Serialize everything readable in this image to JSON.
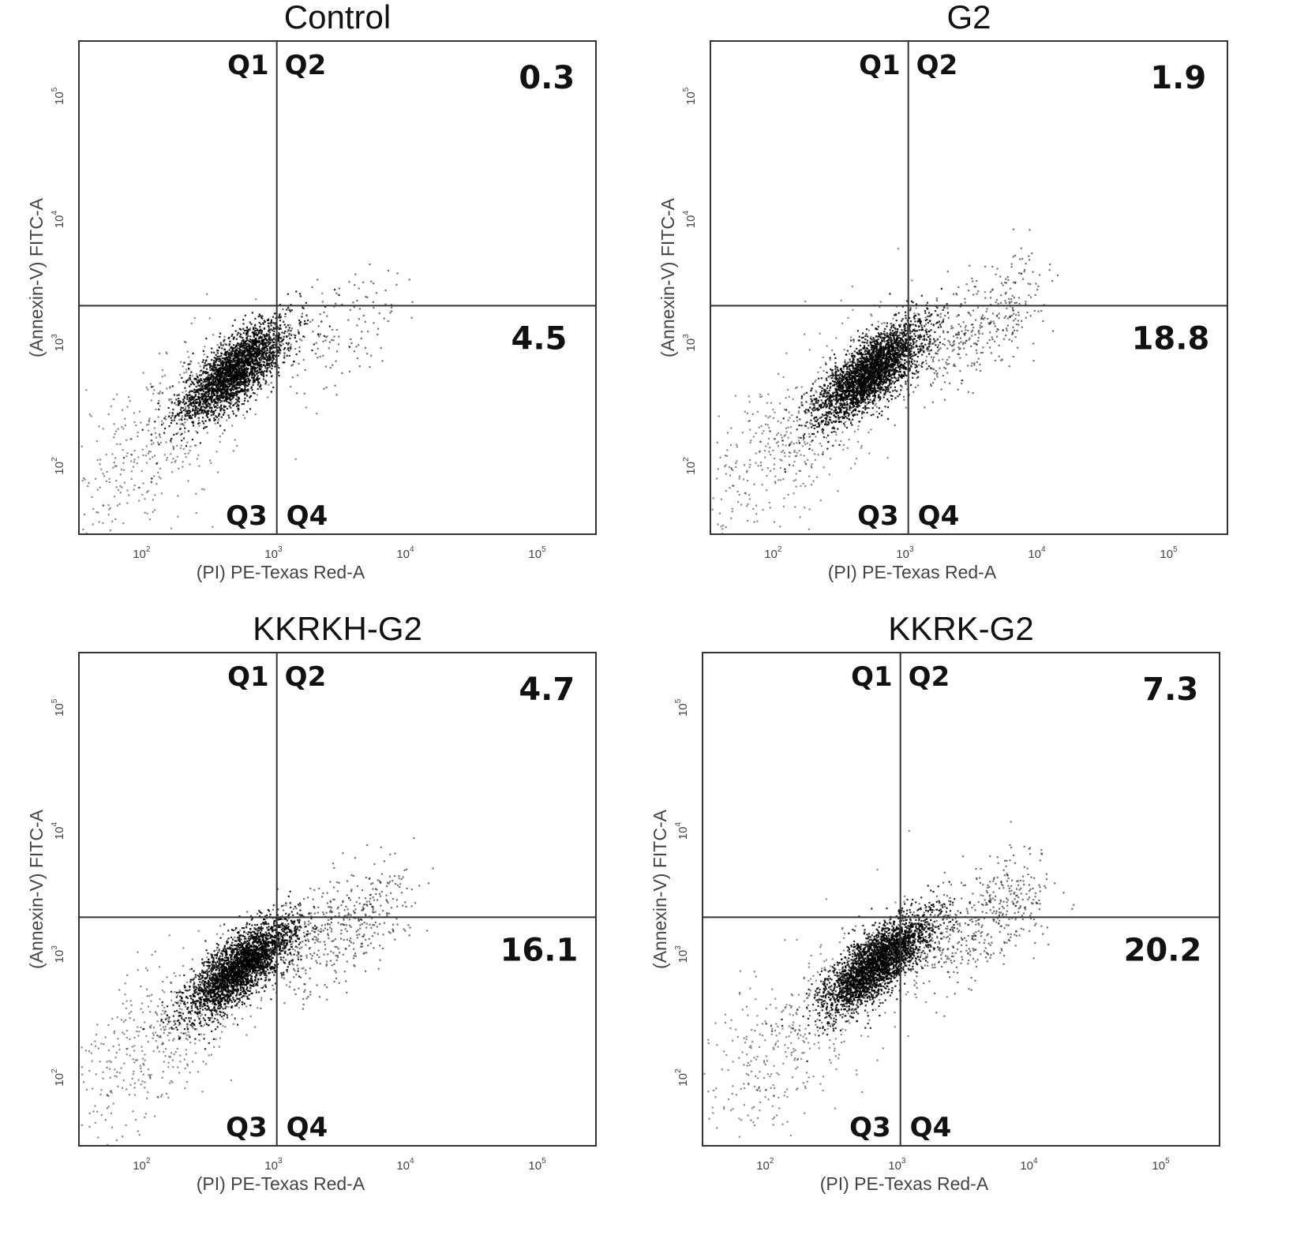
{
  "chart_data": [
    {
      "type": "scatter",
      "title": "Control",
      "xlabel": "(PI) PE-Texas Red-A",
      "ylabel": "(Annexin-V) FITC-A",
      "x_scale": "log",
      "y_scale": "log",
      "xlim": [
        30,
        250000
      ],
      "ylim": [
        28,
        280000
      ],
      "x_ticks": [
        {
          "base": "10",
          "exp": "2",
          "value": 100
        },
        {
          "base": "10",
          "exp": "3",
          "value": 1000
        },
        {
          "base": "10",
          "exp": "4",
          "value": 10000
        },
        {
          "base": "10",
          "exp": "5",
          "value": 100000
        }
      ],
      "y_ticks": [
        {
          "base": "10",
          "exp": "2",
          "value": 100
        },
        {
          "base": "10",
          "exp": "3",
          "value": 1000
        },
        {
          "base": "10",
          "exp": "4",
          "value": 10000
        },
        {
          "base": "10",
          "exp": "5",
          "value": 100000
        }
      ],
      "gate": {
        "x": 950,
        "y": 2000
      },
      "quadrant_labels": {
        "q1": "Q1",
        "q2": "Q2",
        "q3": "Q3",
        "q4": "Q4"
      },
      "percentages": {
        "upper_right": "0.3",
        "lower_right": "4.5"
      },
      "cluster": {
        "center_x": 450,
        "center_y": 600,
        "points": 2600,
        "background_points": 450,
        "tail_points": 140
      }
    },
    {
      "type": "scatter",
      "title": "G2",
      "xlabel": "(PI) PE-Texas Red-A",
      "ylabel": "(Annexin-V) FITC-A",
      "x_scale": "log",
      "y_scale": "log",
      "xlim": [
        30,
        250000
      ],
      "ylim": [
        28,
        280000
      ],
      "x_ticks": [
        {
          "base": "10",
          "exp": "2",
          "value": 100
        },
        {
          "base": "10",
          "exp": "3",
          "value": 1000
        },
        {
          "base": "10",
          "exp": "4",
          "value": 10000
        },
        {
          "base": "10",
          "exp": "5",
          "value": 100000
        }
      ],
      "y_ticks": [
        {
          "base": "10",
          "exp": "2",
          "value": 100
        },
        {
          "base": "10",
          "exp": "3",
          "value": 1000
        },
        {
          "base": "10",
          "exp": "4",
          "value": 10000
        },
        {
          "base": "10",
          "exp": "5",
          "value": 100000
        }
      ],
      "gate": {
        "x": 950,
        "y": 2000
      },
      "quadrant_labels": {
        "q1": "Q1",
        "q2": "Q2",
        "q3": "Q3",
        "q4": "Q4"
      },
      "percentages": {
        "upper_right": "1.9",
        "lower_right": "18.8"
      },
      "cluster": {
        "center_x": 480,
        "center_y": 580,
        "points": 2900,
        "background_points": 500,
        "tail_points": 420
      }
    },
    {
      "type": "scatter",
      "title": "KKRKH-G2",
      "xlabel": "(PI) PE-Texas Red-A",
      "ylabel": "(Annexin-V) FITC-A",
      "x_scale": "log",
      "y_scale": "log",
      "xlim": [
        30,
        250000
      ],
      "ylim": [
        28,
        280000
      ],
      "x_ticks": [
        {
          "base": "10",
          "exp": "2",
          "value": 100
        },
        {
          "base": "10",
          "exp": "3",
          "value": 1000
        },
        {
          "base": "10",
          "exp": "4",
          "value": 10000
        },
        {
          "base": "10",
          "exp": "5",
          "value": 100000
        }
      ],
      "y_ticks": [
        {
          "base": "10",
          "exp": "2",
          "value": 100
        },
        {
          "base": "10",
          "exp": "3",
          "value": 1000
        },
        {
          "base": "10",
          "exp": "4",
          "value": 10000
        },
        {
          "base": "10",
          "exp": "5",
          "value": 100000
        }
      ],
      "gate": {
        "x": 950,
        "y": 2000
      },
      "quadrant_labels": {
        "q1": "Q1",
        "q2": "Q2",
        "q3": "Q3",
        "q4": "Q4"
      },
      "percentages": {
        "upper_right": "4.7",
        "lower_right": "16.1"
      },
      "cluster": {
        "center_x": 500,
        "center_y": 800,
        "points": 2800,
        "background_points": 520,
        "tail_points": 480
      }
    },
    {
      "type": "scatter",
      "title": "KKRK-G2",
      "xlabel": "(PI) PE-Texas Red-A",
      "ylabel": "(Annexin-V) FITC-A",
      "x_scale": "log",
      "y_scale": "log",
      "xlim": [
        30,
        250000
      ],
      "ylim": [
        28,
        280000
      ],
      "x_ticks": [
        {
          "base": "10",
          "exp": "2",
          "value": 100
        },
        {
          "base": "10",
          "exp": "3",
          "value": 1000
        },
        {
          "base": "10",
          "exp": "4",
          "value": 10000
        },
        {
          "base": "10",
          "exp": "5",
          "value": 100000
        }
      ],
      "y_ticks": [
        {
          "base": "10",
          "exp": "2",
          "value": 100
        },
        {
          "base": "10",
          "exp": "3",
          "value": 1000
        },
        {
          "base": "10",
          "exp": "4",
          "value": 10000
        },
        {
          "base": "10",
          "exp": "5",
          "value": 100000
        }
      ],
      "gate": {
        "x": 950,
        "y": 2000
      },
      "quadrant_labels": {
        "q1": "Q1",
        "q2": "Q2",
        "q3": "Q3",
        "q4": "Q4"
      },
      "percentages": {
        "upper_right": "7.3",
        "lower_right": "20.2"
      },
      "cluster": {
        "center_x": 620,
        "center_y": 850,
        "points": 2900,
        "background_points": 480,
        "tail_points": 520
      }
    }
  ]
}
